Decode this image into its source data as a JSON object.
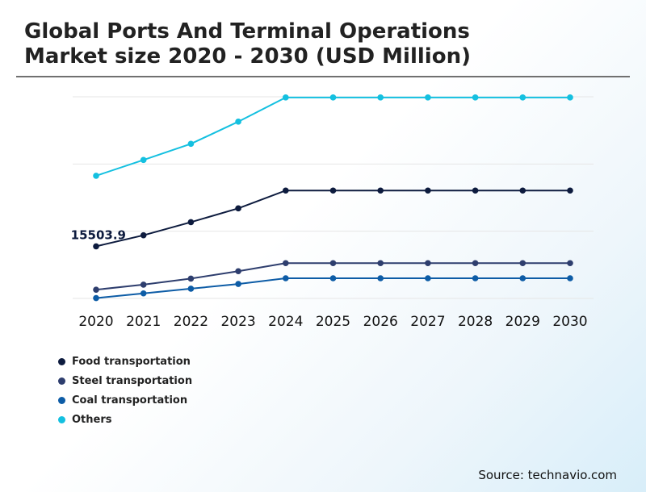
{
  "title_lines": [
    "Global Ports And Terminal Operations",
    "Market size 2020 - 2030 (USD Million)"
  ],
  "source": "Source: technavio.com",
  "chart_data": {
    "type": "line",
    "title": "Global Ports And Terminal Operations Market size 2020 - 2030 (USD Million)",
    "xlabel": "",
    "ylabel": "",
    "categories": [
      "2020",
      "2021",
      "2022",
      "2023",
      "2024",
      "2025",
      "2026",
      "2027",
      "2028",
      "2029",
      "2030"
    ],
    "ylim": [
      0,
      60000
    ],
    "grid": true,
    "legend_position": "bottom-left",
    "annotations": [
      {
        "series": "Food transportation",
        "category": "2020",
        "label": "15503.9"
      }
    ],
    "series": [
      {
        "name": "Food transportation",
        "color": "#0d1b3e",
        "values": [
          15503.9,
          18800,
          22700,
          26800,
          32100,
          32100,
          32100,
          32100,
          32100,
          32100,
          32100
        ]
      },
      {
        "name": "Steel transportation",
        "color": "#2e3e6e",
        "values": [
          2600,
          4100,
          5900,
          8100,
          10500,
          10500,
          10500,
          10500,
          10500,
          10500,
          10500
        ]
      },
      {
        "name": "Coal transportation",
        "color": "#0d5ca6",
        "values": [
          100,
          1500,
          2900,
          4300,
          6000,
          6000,
          6000,
          6000,
          6000,
          6000,
          6000
        ]
      },
      {
        "name": "Others",
        "color": "#14c0e0",
        "values": [
          36500,
          41200,
          46000,
          52600,
          59800,
          59800,
          59800,
          59800,
          59800,
          59800,
          59800
        ]
      }
    ]
  }
}
